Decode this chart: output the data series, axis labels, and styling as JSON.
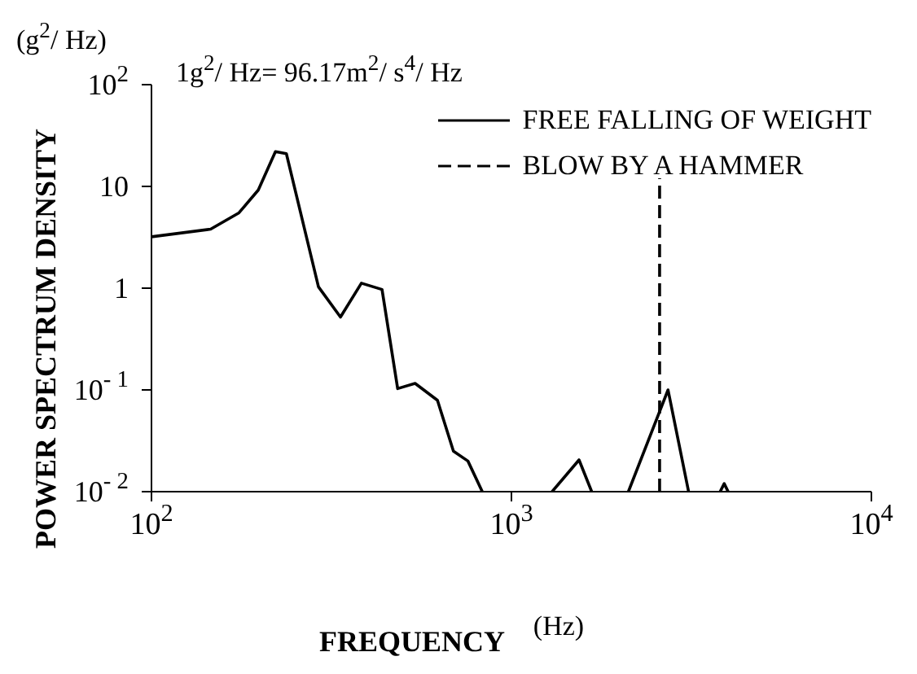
{
  "chart_data": {
    "type": "line",
    "xlabel": "FREQUENCY",
    "ylabel": "POWER SPECTRUM DENSITY",
    "annotations": [
      "(g$^{2}$/ Hz)",
      "1g$^{2}$/ Hz= 96.17m$^{2}$/ s$^{4}$/ Hz",
      "(Hz)"
    ],
    "log": "xy",
    "xlim": [
      100,
      10000
    ],
    "ylim": [
      0.01,
      100
    ],
    "xticks": [
      {
        "value": 100,
        "label": "10$^{2}$"
      },
      {
        "value": 1000,
        "label": "10$^{3}$"
      },
      {
        "value": 10000,
        "label": "10$^{4}$"
      }
    ],
    "yticks": [
      {
        "value": 0.01,
        "label": "10$^{- 2}$"
      },
      {
        "value": 0.1,
        "label": "10$^{- 1}$"
      },
      1,
      10,
      {
        "value": 100,
        "label": "10$^{2}$"
      }
    ],
    "legend": "top right",
    "marker": "none",
    "series": [
      {
        "name": "FREE FALLING OF WEIGHT",
        "color": "#000000",
        "line_style": "solid",
        "x": [
          100,
          146,
          175,
          198,
          221,
          237,
          291,
          335,
          383,
          437,
          483,
          540,
          623,
          690,
          757,
          830,
          null,
          1297,
          1541,
          1671,
          null,
          2113,
          2723,
          3106,
          null,
          3800,
          3900,
          4000
        ],
        "values": [
          3.2,
          3.8,
          5.5,
          9.2,
          22,
          21,
          1.03,
          0.52,
          1.12,
          0.97,
          0.103,
          0.116,
          0.079,
          0.025,
          0.02,
          0.01,
          null,
          0.01,
          0.0205,
          0.01,
          null,
          0.01,
          0.1,
          0.01,
          null,
          0.01,
          0.012,
          0.01
        ]
      },
      {
        "name": "BLOW BY A HAMMER",
        "color": "#000000",
        "line_style": "dashed",
        "x": [
          2580,
          2580
        ],
        "values": [
          0.01,
          12
        ]
      }
    ]
  }
}
